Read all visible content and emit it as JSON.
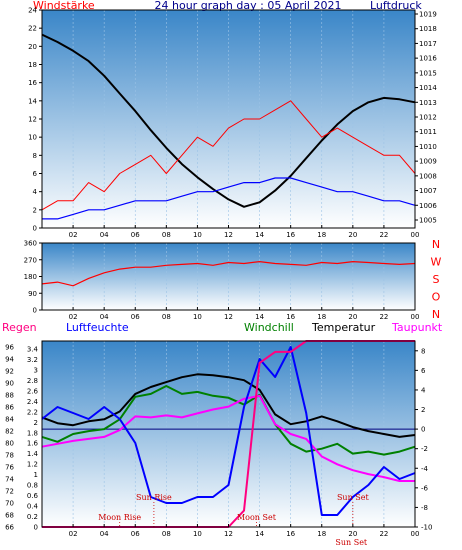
{
  "title": "24 hour graph day : 05 April 2021",
  "colors": {
    "wind": "#ff0000",
    "gust": "#ff0000",
    "wind_avg": "#0000ff",
    "pressure": "#000000",
    "direction": "#ff0000",
    "humidity": "#0000ff",
    "windchill": "#008000",
    "temperature": "#000000",
    "dewpoint": "#ff00ff",
    "rain": "#ff0080",
    "moon_sun": "#cc0000",
    "plot_top": "#3a86c8",
    "plot_bottom": "#ffffff"
  },
  "x_ticks": [
    "02",
    "04",
    "06",
    "08",
    "10",
    "12",
    "14",
    "16",
    "18",
    "20",
    "22",
    "00"
  ],
  "chart_data": [
    {
      "type": "line",
      "name": "wind-pressure",
      "left_label": "Windstärke",
      "right_label": "Luftdruck",
      "left_ticks": [
        "0",
        "2",
        "4",
        "6",
        "8",
        "10",
        "12",
        "14",
        "16",
        "18",
        "20",
        "22",
        "24"
      ],
      "right_ticks": [
        "1005",
        "1006",
        "1007",
        "1008",
        "1009",
        "1010",
        "1011",
        "1012",
        "1013",
        "1014",
        "1015",
        "1016",
        "1017",
        "1018",
        "1019"
      ],
      "ylim_left": [
        0,
        24
      ],
      "ylim_right": [
        1005,
        1019
      ],
      "x": [
        0,
        1,
        2,
        3,
        4,
        5,
        6,
        7,
        8,
        9,
        10,
        11,
        12,
        13,
        14,
        15,
        16,
        17,
        18,
        19,
        20,
        21,
        22,
        23,
        24
      ],
      "series": [
        {
          "key": "pressure",
          "axis": "right",
          "values": [
            1017.6,
            1017.1,
            1016.5,
            1015.8,
            1014.8,
            1013.6,
            1012.4,
            1011.1,
            1009.9,
            1008.8,
            1007.9,
            1007.1,
            1006.4,
            1005.9,
            1006.2,
            1007.0,
            1008.0,
            1009.2,
            1010.4,
            1011.5,
            1012.4,
            1013.0,
            1013.3,
            1013.2,
            1013.0
          ]
        },
        {
          "key": "gust",
          "axis": "left",
          "values": [
            2,
            3,
            3,
            5,
            4,
            6,
            7,
            8,
            6,
            8,
            10,
            9,
            11,
            12,
            12,
            13,
            14,
            12,
            10,
            11,
            10,
            9,
            8,
            8,
            6
          ]
        },
        {
          "key": "wind_avg",
          "axis": "left",
          "values": [
            1,
            1,
            1.5,
            2,
            2,
            2.5,
            3,
            3,
            3,
            3.5,
            4,
            4,
            4.5,
            5,
            5,
            5.5,
            5.5,
            5,
            4.5,
            4,
            4,
            3.5,
            3,
            3,
            2.5
          ]
        }
      ]
    },
    {
      "type": "line",
      "name": "wind-direction",
      "left_ticks": [
        "0",
        "90",
        "180",
        "270",
        "360"
      ],
      "right_ticks": [
        "N",
        "W",
        "S",
        "O",
        "N"
      ],
      "ylim": [
        0,
        360
      ],
      "x": [
        0,
        1,
        2,
        3,
        4,
        5,
        6,
        7,
        8,
        9,
        10,
        11,
        12,
        13,
        14,
        15,
        16,
        17,
        18,
        19,
        20,
        21,
        22,
        23,
        24
      ],
      "series": [
        {
          "key": "direction",
          "values": [
            140,
            150,
            130,
            170,
            200,
            220,
            230,
            230,
            240,
            245,
            250,
            240,
            255,
            250,
            260,
            250,
            245,
            240,
            255,
            250,
            260,
            255,
            250,
            245,
            250
          ]
        }
      ]
    },
    {
      "type": "line",
      "name": "temp-humidity",
      "labels": {
        "rain": "Regen",
        "humidity": "Luftfeuchte",
        "windchill": "Windchill",
        "temperature": "Temperatur",
        "dewpoint": "Taupunkt"
      },
      "rain_ticks": [
        "0",
        "0.2",
        "0.4",
        "0.6",
        "0.8",
        "1",
        "1.2",
        "1.4",
        "1.6",
        "1.8",
        "2",
        "2.2",
        "2.4",
        "2.6",
        "2.8",
        "3",
        "3.2",
        "3.4"
      ],
      "humidity_ticks": [
        "66",
        "68",
        "70",
        "72",
        "74",
        "76",
        "78",
        "80",
        "82",
        "84",
        "86",
        "88",
        "90",
        "92",
        "94",
        "96"
      ],
      "temp_ticks": [
        "-10",
        "-8",
        "-6",
        "-4",
        "-2",
        "0",
        "2",
        "4",
        "6",
        "8"
      ],
      "ylim_temp": [
        -10,
        9
      ],
      "ylim_humidity": [
        66,
        97
      ],
      "ylim_rain": [
        0,
        3.4
      ],
      "x": [
        0,
        1,
        2,
        3,
        4,
        5,
        6,
        7,
        8,
        9,
        10,
        11,
        12,
        13,
        14,
        15,
        16,
        17,
        18,
        19,
        20,
        21,
        22,
        23,
        24
      ],
      "series": [
        {
          "key": "temperature",
          "axis": "temp",
          "values": [
            1.2,
            0.6,
            0.4,
            0.8,
            1.0,
            1.8,
            3.6,
            4.3,
            4.8,
            5.3,
            5.6,
            5.5,
            5.3,
            5.0,
            4.0,
            1.5,
            0.5,
            0.8,
            1.3,
            0.8,
            0.2,
            -0.2,
            -0.5,
            -0.8,
            -0.6
          ]
        },
        {
          "key": "windchill",
          "axis": "temp",
          "values": [
            -0.8,
            -1.3,
            -0.5,
            -0.2,
            0,
            1,
            3.3,
            3.6,
            4.4,
            3.6,
            3.8,
            3.4,
            3.2,
            2.5,
            3.5,
            0.5,
            -1.5,
            -2.3,
            -2.0,
            -1.5,
            -2.5,
            -2.3,
            -2.6,
            -2.3,
            -1.8
          ]
        },
        {
          "key": "dewpoint",
          "axis": "temp",
          "values": [
            -1.8,
            -1.5,
            -1.2,
            -1.0,
            -0.8,
            -0.1,
            1.3,
            1.2,
            1.4,
            1.2,
            1.6,
            2.0,
            2.3,
            3.1,
            3.4,
            0.5,
            -0.5,
            -1.0,
            -2.8,
            -3.6,
            -4.2,
            -4.6,
            -4.9,
            -5.3,
            -5.3
          ]
        },
        {
          "key": "humidity",
          "axis": "humidity",
          "values": [
            84,
            86,
            85,
            84,
            86,
            84,
            80,
            71,
            70,
            70,
            71,
            71,
            73,
            86,
            94,
            91,
            96,
            85,
            68,
            68,
            71,
            73,
            76,
            74,
            75
          ]
        },
        {
          "key": "rain",
          "axis": "rain",
          "values": [
            0,
            0,
            0,
            0,
            0,
            0,
            0,
            0,
            0,
            0,
            0,
            0,
            0,
            0.3,
            3.0,
            3.2,
            3.2,
            3.4,
            3.4,
            3.4,
            3.4,
            3.4,
            3.4,
            3.4,
            3.4
          ]
        }
      ],
      "annotations": [
        {
          "text": "Sun Rise",
          "x": 7.2,
          "level": "upper"
        },
        {
          "text": "Moon Rise",
          "x": 5.0,
          "level": "lower"
        },
        {
          "text": "Moon Set",
          "x": 13.8,
          "level": "lower"
        },
        {
          "text": "Sun Set",
          "x": 20.0,
          "level": "upper"
        },
        {
          "text": "Sun Set",
          "x": 19.9,
          "level": "bottom"
        }
      ]
    }
  ]
}
